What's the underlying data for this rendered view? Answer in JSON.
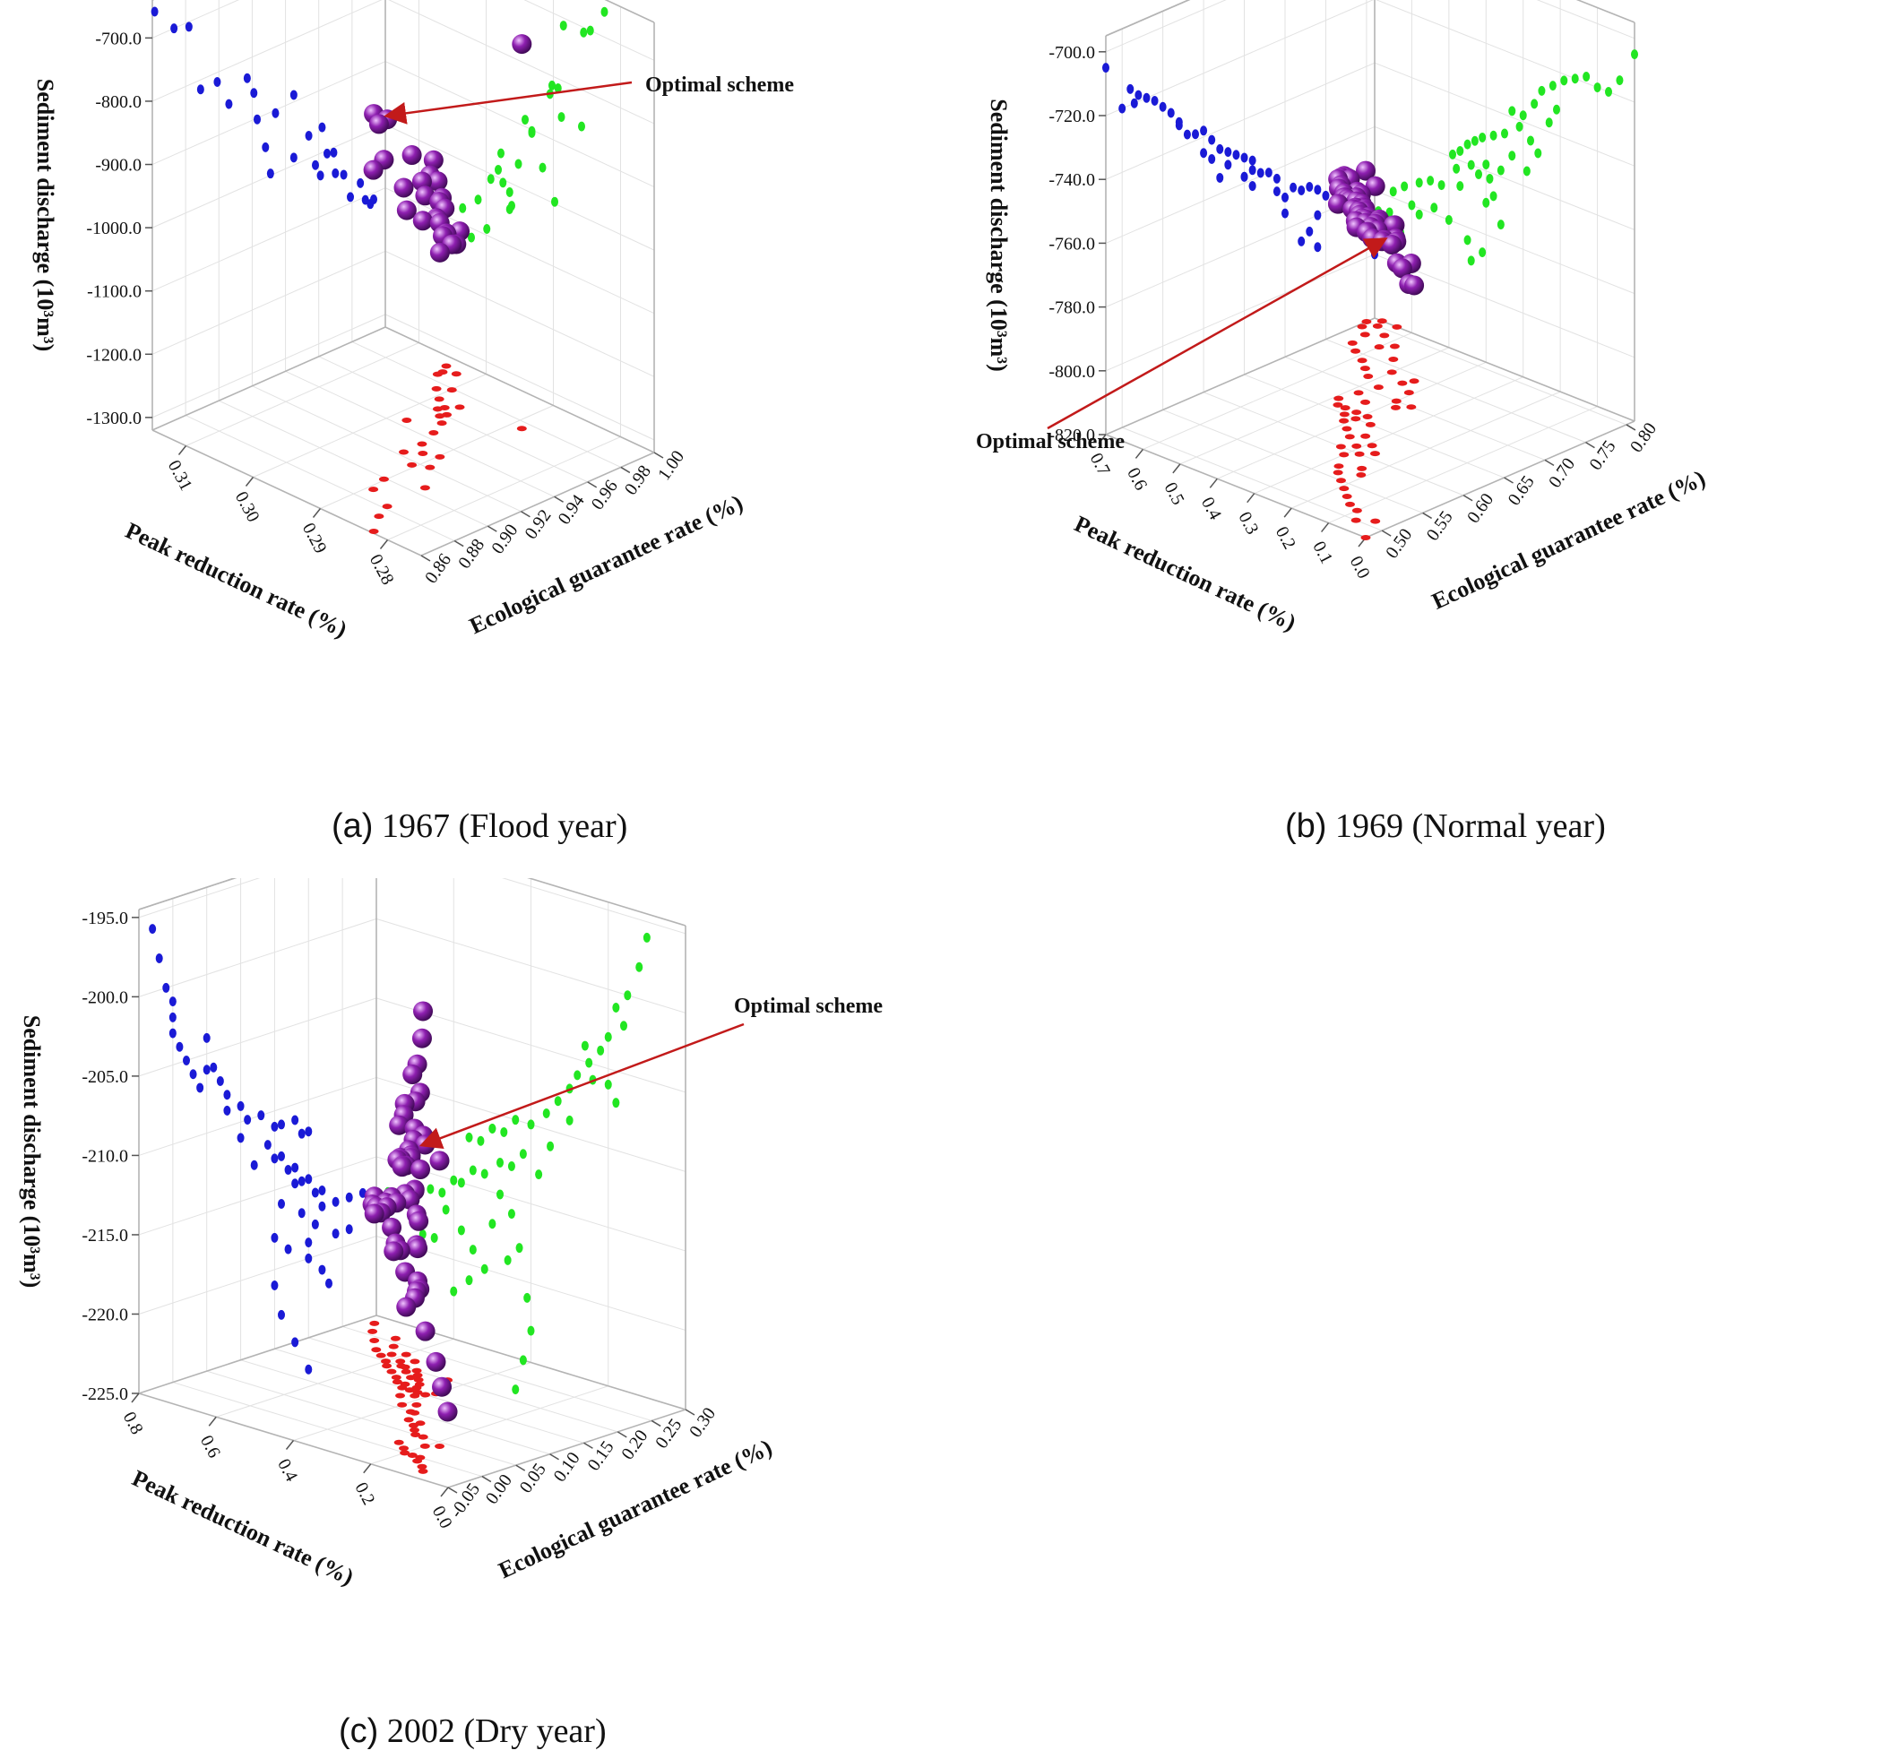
{
  "colors": {
    "xz_projection": "#1a1ad6",
    "yz_projection": "#22e622",
    "xy_projection": "#e61c1c",
    "solution": "#8e1fb0",
    "arrow": "#c21a1a",
    "box": "#b4b4b4",
    "grid": "#e2e2e2"
  },
  "chart_data": [
    {
      "type": "scatter",
      "caption_tag": "(a)",
      "caption_text": "1967 (Flood year)",
      "xlabel": "Peak reduction rate (%)",
      "ylabel": "Ecological guarantee rate (%)",
      "zlabel": "Sediment discharge (10³m³)",
      "xlim": [
        0.275,
        0.315
      ],
      "ylim": [
        0.86,
        1.0
      ],
      "zlim": [
        -1320,
        -640
      ],
      "xticks": [
        "0.28",
        "0.29",
        "0.30",
        "0.31"
      ],
      "yticks": [
        "0.86",
        "0.88",
        "0.90",
        "0.92",
        "0.94",
        "0.96",
        "0.98",
        "1.00"
      ],
      "zticks": [
        "-1300.0",
        "-1200.0",
        "-1100.0",
        "-1000.0",
        "-900.0",
        "-800.0",
        "-700.0"
      ],
      "annotation": "Optimal scheme",
      "optimal": [
        0.2824,
        0.8614,
        -660
      ],
      "points": [
        [
          0.2824,
          0.8614,
          -660
        ],
        [
          0.2845,
          0.873,
          -700
        ],
        [
          0.2855,
          0.882,
          -708
        ],
        [
          0.2885,
          0.975,
          -712
        ],
        [
          0.2893,
          0.889,
          -815
        ],
        [
          0.2902,
          0.899,
          -815
        ],
        [
          0.2858,
          0.906,
          -858
        ],
        [
          0.2905,
          0.917,
          -830
        ],
        [
          0.2888,
          0.921,
          -858
        ],
        [
          0.2932,
          0.923,
          -902
        ],
        [
          0.2932,
          0.934,
          -905
        ],
        [
          0.2942,
          0.945,
          -889
        ],
        [
          0.2916,
          0.928,
          -952
        ],
        [
          0.2898,
          0.931,
          -997
        ],
        [
          0.2982,
          0.945,
          -988
        ],
        [
          0.2952,
          0.954,
          -964
        ],
        [
          0.2978,
          0.962,
          -960
        ],
        [
          0.2975,
          0.965,
          -1005
        ],
        [
          0.2965,
          0.958,
          -1015
        ],
        [
          0.2962,
          0.961,
          -1035
        ],
        [
          0.2993,
          0.969,
          -1008
        ],
        [
          0.2965,
          0.97,
          -1042
        ],
        [
          0.3012,
          0.975,
          -1050
        ],
        [
          0.2999,
          0.979,
          -1090
        ],
        [
          0.3035,
          0.985,
          -1075
        ],
        [
          0.3035,
          0.988,
          -1105
        ],
        [
          0.3022,
          0.991,
          -1115
        ],
        [
          0.3042,
          0.993,
          -1110
        ]
      ]
    },
    {
      "type": "scatter",
      "caption_tag": "(b)",
      "caption_text": "1969 (Normal year)",
      "xlabel": "Peak reduction rate (%)",
      "ylabel": "Ecological guarantee rate (%)",
      "zlabel": "Sediment discharge (10³m³)",
      "xlim": [
        0.0,
        0.7
      ],
      "ylim": [
        0.48,
        0.81
      ],
      "zlim": [
        -820,
        -695
      ],
      "xticks": [
        "0.0",
        "0.1",
        "0.2",
        "0.3",
        "0.4",
        "0.5",
        "0.6",
        "0.7"
      ],
      "yticks": [
        "0.50",
        "0.55",
        "0.60",
        "0.65",
        "0.70",
        "0.75",
        "0.80"
      ],
      "zticks": [
        "-820.0",
        "-800.0",
        "-780.0",
        "-760.0",
        "-740.0",
        "-720.0",
        "-700.0"
      ],
      "annotation": "Optimal scheme",
      "optimal": [
        0.4,
        0.7,
        -770
      ],
      "points": [
        [
          0.0,
          0.48,
          -705
        ],
        [
          0.04,
          0.51,
          -715
        ],
        [
          0.07,
          0.5,
          -720
        ],
        [
          0.1,
          0.515,
          -720
        ],
        [
          0.13,
          0.52,
          -718
        ],
        [
          0.16,
          0.53,
          -720
        ],
        [
          0.19,
          0.54,
          -722
        ],
        [
          0.22,
          0.55,
          -725
        ],
        [
          0.25,
          0.56,
          -728
        ],
        [
          0.21,
          0.57,
          -732
        ],
        [
          0.23,
          0.58,
          -737
        ],
        [
          0.27,
          0.57,
          -733
        ],
        [
          0.3,
          0.59,
          -738
        ],
        [
          0.33,
          0.6,
          -738
        ],
        [
          0.31,
          0.61,
          -742
        ],
        [
          0.28,
          0.6,
          -745
        ],
        [
          0.26,
          0.61,
          -748
        ],
        [
          0.35,
          0.62,
          -746
        ],
        [
          0.38,
          0.63,
          -748
        ],
        [
          0.41,
          0.64,
          -750
        ],
        [
          0.43,
          0.65,
          -752
        ],
        [
          0.45,
          0.66,
          -754
        ],
        [
          0.47,
          0.66,
          -757
        ],
        [
          0.49,
          0.67,
          -759
        ],
        [
          0.4,
          0.65,
          -758
        ],
        [
          0.42,
          0.66,
          -762
        ],
        [
          0.36,
          0.65,
          -758
        ],
        [
          0.39,
          0.66,
          -762
        ],
        [
          0.44,
          0.68,
          -760
        ],
        [
          0.48,
          0.69,
          -763
        ],
        [
          0.4,
          0.7,
          -770
        ],
        [
          0.38,
          0.69,
          -767
        ],
        [
          0.36,
          0.7,
          -775
        ],
        [
          0.47,
          0.71,
          -768
        ],
        [
          0.52,
          0.72,
          -770
        ],
        [
          0.55,
          0.73,
          -770
        ],
        [
          0.58,
          0.74,
          -772
        ],
        [
          0.62,
          0.75,
          -775
        ],
        [
          0.65,
          0.76,
          -778
        ],
        [
          0.6,
          0.77,
          -780
        ],
        [
          0.66,
          0.78,
          -785
        ],
        [
          0.69,
          0.79,
          -786
        ],
        [
          0.67,
          0.8,
          -790
        ],
        [
          0.63,
          0.79,
          -790
        ],
        [
          0.58,
          0.78,
          -782
        ],
        [
          0.54,
          0.76,
          -778
        ],
        [
          0.5,
          0.74,
          -780
        ],
        [
          0.45,
          0.73,
          -784
        ],
        [
          0.41,
          0.72,
          -786
        ],
        [
          0.44,
          0.74,
          -790
        ],
        [
          0.68,
          0.81,
          -795
        ],
        [
          0.64,
          0.81,
          -800
        ],
        [
          0.7,
          0.8,
          -792
        ],
        [
          0.33,
          0.63,
          -752
        ],
        [
          0.29,
          0.62,
          -755
        ]
      ]
    },
    {
      "type": "scatter",
      "caption_tag": "(c)",
      "caption_text": "2002 (Dry year)",
      "xlabel": "Peak reduction rate (%)",
      "ylabel": "Ecological guarantee rate (%)",
      "zlabel": "Sediment discharge (10³m³)",
      "xlim": [
        0.0,
        0.8
      ],
      "ylim": [
        -0.05,
        0.3
      ],
      "zlim": [
        -225,
        -194.5
      ],
      "xticks": [
        "0.0",
        "0.2",
        "0.4",
        "0.6",
        "0.8"
      ],
      "yticks": [
        "-0.05",
        "0.00",
        "0.05",
        "0.10",
        "0.15",
        "0.20",
        "0.25",
        "0.30"
      ],
      "zticks": [
        "-225.0",
        "-220.0",
        "-215.0",
        "-210.0",
        "-205.0",
        "-200.0",
        "-195.0"
      ],
      "annotation": "Optimal scheme",
      "optimal": [
        0.5,
        0.18,
        -211
      ],
      "points": [
        [
          0.1,
          -0.03,
          -196
        ],
        [
          0.12,
          -0.02,
          -198
        ],
        [
          0.15,
          -0.01,
          -200
        ],
        [
          0.18,
          0.0,
          -201
        ],
        [
          0.2,
          0.0,
          -203
        ],
        [
          0.22,
          0.01,
          -204
        ],
        [
          0.25,
          0.02,
          -205
        ],
        [
          0.2,
          0.03,
          -206
        ],
        [
          0.18,
          0.04,
          -207
        ],
        [
          0.24,
          0.05,
          -206
        ],
        [
          0.28,
          0.06,
          -206
        ],
        [
          0.3,
          0.07,
          -207
        ],
        [
          0.33,
          0.08,
          -208
        ],
        [
          0.36,
          0.1,
          -209
        ],
        [
          0.4,
          0.11,
          -210
        ],
        [
          0.44,
          0.13,
          -210
        ],
        [
          0.47,
          0.15,
          -211
        ],
        [
          0.5,
          0.16,
          -211
        ],
        [
          0.42,
          0.14,
          -212
        ],
        [
          0.45,
          0.15,
          -213
        ],
        [
          0.48,
          0.16,
          -213
        ],
        [
          0.52,
          0.17,
          -214
        ],
        [
          0.55,
          0.18,
          -214
        ],
        [
          0.58,
          0.19,
          -215
        ],
        [
          0.6,
          0.2,
          -215
        ],
        [
          0.63,
          0.21,
          -216
        ],
        [
          0.66,
          0.22,
          -216
        ],
        [
          0.7,
          0.24,
          -217
        ],
        [
          0.74,
          0.26,
          -217
        ],
        [
          0.77,
          0.28,
          -217
        ],
        [
          0.62,
          0.22,
          -217
        ],
        [
          0.58,
          0.21,
          -218
        ],
        [
          0.55,
          0.2,
          -219
        ],
        [
          0.52,
          0.2,
          -220
        ],
        [
          0.56,
          0.22,
          -221
        ],
        [
          0.6,
          0.23,
          -222
        ],
        [
          0.45,
          0.16,
          -216
        ],
        [
          0.43,
          0.15,
          -218
        ],
        [
          0.41,
          0.15,
          -221
        ],
        [
          0.4,
          0.16,
          -223
        ],
        [
          0.42,
          0.18,
          -225
        ],
        [
          0.44,
          0.2,
          -227
        ],
        [
          0.5,
          0.18,
          -211
        ],
        [
          0.53,
          0.19,
          -212
        ],
        [
          0.56,
          0.2,
          -212
        ],
        [
          0.38,
          0.12,
          -213
        ],
        [
          0.35,
          0.1,
          -211
        ],
        [
          0.3,
          0.08,
          -209
        ],
        [
          0.26,
          0.05,
          -204
        ],
        [
          0.16,
          0.0,
          -202
        ],
        [
          0.65,
          0.24,
          -219
        ],
        [
          0.68,
          0.26,
          -219
        ],
        [
          0.48,
          0.18,
          -215
        ],
        [
          0.5,
          0.19,
          -217
        ],
        [
          0.46,
          0.17,
          -219
        ]
      ]
    }
  ]
}
